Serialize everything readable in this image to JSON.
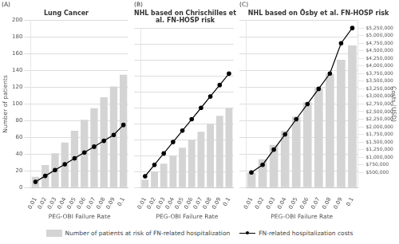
{
  "chart_data": [
    {
      "type": "bar",
      "title": "Lung Cancer",
      "annotations": [
        "(A)"
      ],
      "x_label": "PEG-OBI Failure Rate",
      "y_label": "Number of patients",
      "categories": [
        "0.01",
        "0.02",
        "0.03",
        "0.04",
        "0.05",
        "0.06",
        "0.07",
        "0.08",
        "0.09",
        "0.1"
      ],
      "series": [
        {
          "name": "Number of patients at risk of FN-related hospitalization",
          "type": "bar",
          "color": "#d4d4d4",
          "values": [
            13,
            27,
            41,
            54,
            68,
            81,
            95,
            108,
            121,
            135
          ]
        },
        {
          "name": "FN-related hospitalization costs",
          "type": "line",
          "color": "#000000",
          "marker": "circle",
          "axis": "y2",
          "values": [
            7,
            14,
            21,
            28,
            35,
            42,
            49,
            56,
            63,
            75
          ]
        }
      ],
      "ylim": [
        0,
        200
      ],
      "yticks": [
        0,
        20,
        40,
        60,
        80,
        100,
        120,
        140,
        160,
        180,
        200
      ],
      "y2lim": [
        0,
        200
      ],
      "grid": true,
      "legend": "bottom"
    },
    {
      "type": "bar",
      "title": "NHL based on Chrischilles et al. FN-HOSP risk",
      "annotations": [
        "(B)"
      ],
      "x_label": "PEG-OBI Failure Rate",
      "categories": [
        "0.01",
        "0.02",
        "0.03",
        "0.04",
        "0.05",
        "0.06",
        "0.07",
        "0.08",
        "0.09",
        "0.1"
      ],
      "series": [
        {
          "name": "Number of patients at risk of FN-related hospitalization",
          "type": "bar",
          "color": "#d4d4d4",
          "values": [
            10,
            20,
            30,
            40,
            50,
            60,
            70,
            80,
            90,
            100
          ]
        },
        {
          "name": "FN-related hospitalization costs",
          "type": "line",
          "color": "#000000",
          "marker": "circle",
          "axis": "y2",
          "values": [
            250000,
            500000,
            750000,
            1000000,
            1250000,
            1500000,
            1750000,
            2000000,
            2250000,
            2500000
          ]
        }
      ],
      "ylim": [
        0,
        200
      ],
      "yticks": [
        0,
        20,
        40,
        60,
        80,
        100,
        120,
        140,
        160,
        180,
        200
      ],
      "y2lim": [
        0,
        3500000
      ],
      "grid": true,
      "tick_labels": "x",
      "legend": false
    },
    {
      "type": "bar",
      "title": "NHL based on Ösby et al. FN-HOSP risk",
      "annotations": [
        "(C)"
      ],
      "x_label": "PEG-OBI Failure Rate",
      "y2_label": "Costs (USD)",
      "categories": [
        "0.01",
        "0.02",
        "0.03",
        "0.04",
        "0.05",
        "0.06",
        "0.07",
        "0.08",
        "0.09",
        "0.1"
      ],
      "series": [
        {
          "name": "Number of patients at risk of FN-related hospitalization",
          "type": "bar",
          "color": "#d4d4d4",
          "values": [
            18,
            34,
            51,
            68,
            85,
            102,
            119,
            136,
            153,
            170
          ]
        },
        {
          "name": "FN-related hospitalization costs",
          "type": "line",
          "color": "#000000",
          "marker": "circle",
          "axis": "y2",
          "values": [
            500000,
            750000,
            1250000,
            1750000,
            2250000,
            2750000,
            3250000,
            3750000,
            4750000,
            5250000
          ]
        }
      ],
      "ylim": [
        0,
        200
      ],
      "yticks": [
        0,
        20,
        40,
        60,
        80,
        100,
        120,
        140,
        160,
        180,
        200
      ],
      "y2lim": [
        0,
        5500000
      ],
      "y2ticks": [
        {
          "value": 500000,
          "label": "$500,000"
        },
        {
          "value": 750000,
          "label": "$750,000"
        },
        {
          "value": 1000000,
          "label": "$1,000,000"
        },
        {
          "value": 1250000,
          "label": "$1,250,000"
        },
        {
          "value": 1500000,
          "label": "$1,500,000"
        },
        {
          "value": 1750000,
          "label": "$1,750,000"
        },
        {
          "value": 2000000,
          "label": "$2,000,000"
        },
        {
          "value": 2250000,
          "label": "$2,250,000"
        },
        {
          "value": 2500000,
          "label": "$2,500,000"
        },
        {
          "value": 2750000,
          "label": "$2,750,000"
        },
        {
          "value": 3000000,
          "label": "$3,000,000"
        },
        {
          "value": 3250000,
          "label": "$3,250,000"
        },
        {
          "value": 3500000,
          "label": "$3,500,000"
        },
        {
          "value": 3750000,
          "label": "$3,750,000"
        },
        {
          "value": 4000000,
          "label": "$4,000,000"
        },
        {
          "value": 4250000,
          "label": "$4,250,000"
        },
        {
          "value": 4500000,
          "label": "$4,500,000"
        },
        {
          "value": 4750000,
          "label": "$4,750,000"
        },
        {
          "value": 5000000,
          "label": "$5,000,000"
        },
        {
          "value": 5250000,
          "label": "$5,250,000"
        }
      ],
      "grid": true,
      "tick_labels": "x",
      "legend": false
    }
  ]
}
